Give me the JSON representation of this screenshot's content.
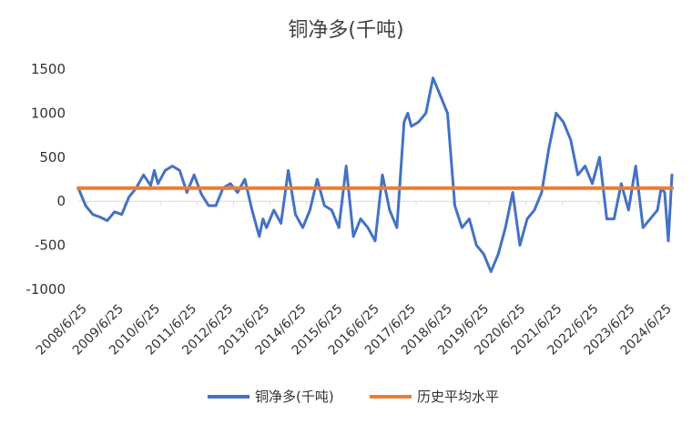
{
  "chart_data": {
    "type": "line",
    "title": "铜净多(千吨)",
    "xlabel": "",
    "ylabel": "",
    "ylim": [
      -1000,
      1500
    ],
    "yticks": [
      1500,
      1000,
      500,
      0,
      -500,
      -1000
    ],
    "xticks": [
      "2008/6/25",
      "2009/6/25",
      "2010/6/25",
      "2011/6/25",
      "2012/6/25",
      "2013/6/25",
      "2014/6/25",
      "2015/6/25",
      "2016/6/25",
      "2017/6/25",
      "2018/6/25",
      "2019/6/25",
      "2020/6/25",
      "2021/6/25",
      "2022/6/25",
      "2023/6/25",
      "2024/6/25"
    ],
    "grid": false,
    "legend": "bottom",
    "series": [
      {
        "name": "铜净多(千吨)",
        "color": "#4472C4",
        "x": [
          2008.0,
          2008.2,
          2008.4,
          2008.6,
          2008.8,
          2009.0,
          2009.2,
          2009.4,
          2009.6,
          2009.8,
          2010.0,
          2010.1,
          2010.2,
          2010.4,
          2010.6,
          2010.8,
          2011.0,
          2011.2,
          2011.4,
          2011.6,
          2011.8,
          2012.0,
          2012.2,
          2012.4,
          2012.6,
          2012.8,
          2013.0,
          2013.1,
          2013.2,
          2013.4,
          2013.6,
          2013.8,
          2014.0,
          2014.2,
          2014.4,
          2014.6,
          2014.8,
          2015.0,
          2015.2,
          2015.4,
          2015.6,
          2015.8,
          2016.0,
          2016.2,
          2016.4,
          2016.6,
          2016.8,
          2017.0,
          2017.1,
          2017.2,
          2017.4,
          2017.6,
          2017.8,
          2018.0,
          2018.2,
          2018.4,
          2018.6,
          2018.8,
          2019.0,
          2019.2,
          2019.4,
          2019.6,
          2019.8,
          2020.0,
          2020.2,
          2020.4,
          2020.6,
          2020.8,
          2021.0,
          2021.2,
          2021.4,
          2021.6,
          2021.8,
          2022.0,
          2022.2,
          2022.4,
          2022.6,
          2022.8,
          2023.0,
          2023.2,
          2023.4,
          2023.6,
          2023.8,
          2024.0,
          2024.1,
          2024.2,
          2024.3,
          2024.4
        ],
        "values": [
          150,
          -50,
          -150,
          -180,
          -220,
          -120,
          -150,
          50,
          150,
          300,
          180,
          350,
          200,
          350,
          400,
          350,
          100,
          300,
          80,
          -50,
          -50,
          150,
          200,
          100,
          250,
          -100,
          -400,
          -200,
          -300,
          -100,
          -250,
          350,
          -150,
          -300,
          -100,
          250,
          -50,
          -100,
          -300,
          400,
          -400,
          -200,
          -300,
          -450,
          300,
          -100,
          -300,
          900,
          1000,
          850,
          900,
          1000,
          1400,
          1200,
          1000,
          -50,
          -300,
          -200,
          -500,
          -600,
          -800,
          -600,
          -300,
          100,
          -500,
          -200,
          -100,
          100,
          600,
          1000,
          900,
          700,
          300,
          400,
          200,
          500,
          -200,
          -200,
          200,
          -100,
          400,
          -300,
          -200,
          -100,
          150,
          100,
          -450,
          300
        ]
      },
      {
        "name": "历史平均水平",
        "color": "#ED7D31",
        "x": [
          2008.0,
          2024.4
        ],
        "values": [
          150,
          150
        ]
      }
    ]
  }
}
